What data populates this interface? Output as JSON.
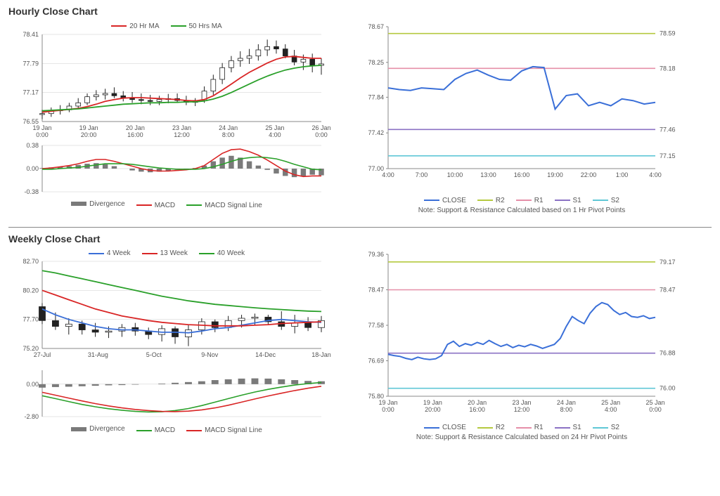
{
  "sections": {
    "hourly": {
      "title": "Hourly Close Chart"
    },
    "weekly": {
      "title": "Weekly Close Chart"
    }
  },
  "colors": {
    "red": "#d92525",
    "green": "#2aa02a",
    "blue": "#3a6fd8",
    "grey": "#7a7a7a",
    "yellowgreen": "#b5c93f",
    "pink": "#e58fa8",
    "purple": "#8b72c4",
    "cyan": "#5fc7d6",
    "black": "#222222",
    "gridline": "#cccccc",
    "background": "#ffffff"
  },
  "hourly_price": {
    "type": "line+candles",
    "legend": [
      {
        "label": "20 Hr MA",
        "color": "#d92525"
      },
      {
        "label": "50 Hrs MA",
        "color": "#2aa02a"
      }
    ],
    "ylim": [
      76.55,
      78.41
    ],
    "yticks": [
      76.55,
      77.17,
      77.79,
      78.41
    ],
    "xticks": [
      "19 Jan\n0:00",
      "19 Jan\n20:00",
      "20 Jan\n16:00",
      "23 Jan\n12:00",
      "24 Jan\n8:00",
      "25 Jan\n4:00",
      "26 Jan\n0:00"
    ],
    "candles": [
      {
        "o": 76.7,
        "h": 76.8,
        "l": 76.6,
        "c": 76.72
      },
      {
        "o": 76.72,
        "h": 76.85,
        "l": 76.65,
        "c": 76.78
      },
      {
        "o": 76.78,
        "h": 76.9,
        "l": 76.7,
        "c": 76.8
      },
      {
        "o": 76.8,
        "h": 76.95,
        "l": 76.75,
        "c": 76.88
      },
      {
        "o": 76.88,
        "h": 77.05,
        "l": 76.82,
        "c": 76.95
      },
      {
        "o": 76.95,
        "h": 77.15,
        "l": 76.9,
        "c": 77.08
      },
      {
        "o": 77.08,
        "h": 77.22,
        "l": 77.0,
        "c": 77.12
      },
      {
        "o": 77.12,
        "h": 77.25,
        "l": 77.02,
        "c": 77.15
      },
      {
        "o": 77.15,
        "h": 77.28,
        "l": 77.05,
        "c": 77.1
      },
      {
        "o": 77.1,
        "h": 77.2,
        "l": 76.98,
        "c": 77.05
      },
      {
        "o": 77.05,
        "h": 77.18,
        "l": 76.95,
        "c": 77.02
      },
      {
        "o": 77.02,
        "h": 77.15,
        "l": 76.92,
        "c": 77.0
      },
      {
        "o": 77.0,
        "h": 77.12,
        "l": 76.9,
        "c": 76.98
      },
      {
        "o": 76.98,
        "h": 77.1,
        "l": 76.9,
        "c": 77.02
      },
      {
        "o": 77.02,
        "h": 77.14,
        "l": 76.94,
        "c": 77.04
      },
      {
        "o": 77.04,
        "h": 77.15,
        "l": 76.95,
        "c": 77.0
      },
      {
        "o": 77.0,
        "h": 77.1,
        "l": 76.9,
        "c": 76.96
      },
      {
        "o": 76.96,
        "h": 77.05,
        "l": 76.88,
        "c": 77.0
      },
      {
        "o": 77.0,
        "h": 77.3,
        "l": 76.95,
        "c": 77.2
      },
      {
        "o": 77.2,
        "h": 77.55,
        "l": 77.12,
        "c": 77.45
      },
      {
        "o": 77.45,
        "h": 77.8,
        "l": 77.35,
        "c": 77.7
      },
      {
        "o": 77.7,
        "h": 77.95,
        "l": 77.6,
        "c": 77.85
      },
      {
        "o": 77.85,
        "h": 78.05,
        "l": 77.72,
        "c": 77.9
      },
      {
        "o": 77.9,
        "h": 78.1,
        "l": 77.78,
        "c": 77.95
      },
      {
        "o": 77.95,
        "h": 78.2,
        "l": 77.85,
        "c": 78.08
      },
      {
        "o": 78.08,
        "h": 78.3,
        "l": 77.95,
        "c": 78.15
      },
      {
        "o": 78.15,
        "h": 78.28,
        "l": 78.0,
        "c": 78.1
      },
      {
        "o": 78.1,
        "h": 78.2,
        "l": 77.9,
        "c": 77.95
      },
      {
        "o": 77.95,
        "h": 78.08,
        "l": 77.75,
        "c": 77.82
      },
      {
        "o": 77.82,
        "h": 77.98,
        "l": 77.65,
        "c": 77.88
      },
      {
        "o": 77.88,
        "h": 78.0,
        "l": 77.6,
        "c": 77.75
      },
      {
        "o": 77.75,
        "h": 77.9,
        "l": 77.55,
        "c": 77.78
      }
    ],
    "ma20": [
      76.75,
      76.77,
      76.79,
      76.81,
      76.83,
      76.87,
      76.92,
      76.98,
      77.02,
      77.05,
      77.06,
      77.06,
      77.05,
      77.04,
      77.03,
      77.02,
      77.0,
      76.99,
      77.02,
      77.1,
      77.22,
      77.35,
      77.48,
      77.6,
      77.7,
      77.8,
      77.88,
      77.93,
      77.94,
      77.92,
      77.9,
      77.9
    ],
    "ma50": [
      76.78,
      76.79,
      76.8,
      76.81,
      76.82,
      76.84,
      76.86,
      76.88,
      76.9,
      76.92,
      76.93,
      76.94,
      76.95,
      76.95,
      76.96,
      76.96,
      76.97,
      76.97,
      76.99,
      77.03,
      77.09,
      77.17,
      77.26,
      77.35,
      77.44,
      77.52,
      77.59,
      77.65,
      77.69,
      77.72,
      77.74,
      77.75
    ]
  },
  "hourly_macd": {
    "type": "macd",
    "legend": [
      {
        "label": "Divergence",
        "color": "#7a7a7a",
        "thick": true
      },
      {
        "label": "MACD",
        "color": "#d92525"
      },
      {
        "label": "MACD Signal Line",
        "color": "#2aa02a"
      }
    ],
    "ylim": [
      -0.38,
      0.38
    ],
    "yticks": [
      -0.38,
      0.0,
      0.38
    ],
    "divergence": [
      0.01,
      0.02,
      0.03,
      0.04,
      0.06,
      0.08,
      0.09,
      0.07,
      0.04,
      0.0,
      -0.03,
      -0.05,
      -0.06,
      -0.05,
      -0.04,
      -0.02,
      -0.01,
      0.01,
      0.05,
      0.12,
      0.18,
      0.21,
      0.18,
      0.12,
      0.05,
      -0.02,
      -0.08,
      -0.12,
      -0.14,
      -0.13,
      -0.1,
      -0.11
    ],
    "macd": [
      0.0,
      0.01,
      0.03,
      0.05,
      0.08,
      0.12,
      0.15,
      0.15,
      0.12,
      0.08,
      0.04,
      0.0,
      -0.03,
      -0.04,
      -0.04,
      -0.03,
      -0.02,
      0.0,
      0.05,
      0.15,
      0.25,
      0.31,
      0.32,
      0.28,
      0.22,
      0.14,
      0.05,
      -0.04,
      -0.1,
      -0.13,
      -0.12,
      -0.12
    ],
    "signal": [
      -0.01,
      -0.01,
      0.0,
      0.01,
      0.02,
      0.04,
      0.06,
      0.08,
      0.08,
      0.08,
      0.07,
      0.05,
      0.03,
      0.01,
      0.0,
      -0.01,
      -0.01,
      -0.01,
      0.0,
      0.03,
      0.07,
      0.12,
      0.16,
      0.18,
      0.19,
      0.18,
      0.16,
      0.12,
      0.07,
      0.03,
      -0.01,
      -0.02
    ]
  },
  "hourly_pivot": {
    "type": "line",
    "legend": [
      {
        "label": "CLOSE",
        "color": "#3a6fd8"
      },
      {
        "label": "R2",
        "color": "#b5c93f"
      },
      {
        "label": "R1",
        "color": "#e58fa8"
      },
      {
        "label": "S1",
        "color": "#8b72c4"
      },
      {
        "label": "S2",
        "color": "#5fc7d6"
      }
    ],
    "note": "Note: Support & Resistance Calculated based on 1 Hr Pivot Points",
    "ylim": [
      77.0,
      78.67
    ],
    "yticks": [
      77.0,
      77.42,
      77.84,
      78.25,
      78.67
    ],
    "xticks": [
      "4:00",
      "7:00",
      "10:00",
      "13:00",
      "16:00",
      "19:00",
      "22:00",
      "1:00",
      "4:00"
    ],
    "levels": {
      "R2": 78.59,
      "R1": 78.18,
      "S1": 77.46,
      "S2": 77.15
    },
    "close": [
      77.95,
      77.93,
      77.92,
      77.95,
      77.94,
      77.93,
      78.05,
      78.12,
      78.16,
      78.1,
      78.05,
      78.04,
      78.15,
      78.2,
      78.19,
      77.7,
      77.86,
      77.88,
      77.74,
      77.78,
      77.74,
      77.82,
      77.8,
      77.76,
      77.78
    ]
  },
  "weekly_price": {
    "type": "candlestick+line",
    "legend": [
      {
        "label": "4 Week",
        "color": "#3a6fd8"
      },
      {
        "label": "13 Week",
        "color": "#d92525"
      },
      {
        "label": "40 Week",
        "color": "#2aa02a"
      }
    ],
    "ylim": [
      75.2,
      82.7
    ],
    "yticks": [
      75.2,
      77.7,
      80.2,
      82.7
    ],
    "xticks": [
      "27-Jul",
      "31-Aug",
      "5-Oct",
      "9-Nov",
      "14-Dec",
      "18-Jan"
    ],
    "candles": [
      {
        "o": 78.8,
        "h": 79.1,
        "l": 77.3,
        "c": 77.6
      },
      {
        "o": 77.6,
        "h": 78.3,
        "l": 76.8,
        "c": 77.1
      },
      {
        "o": 77.1,
        "h": 77.8,
        "l": 76.4,
        "c": 77.3
      },
      {
        "o": 77.3,
        "h": 77.6,
        "l": 76.4,
        "c": 76.8
      },
      {
        "o": 76.8,
        "h": 77.4,
        "l": 76.2,
        "c": 76.6
      },
      {
        "o": 76.6,
        "h": 77.1,
        "l": 76.1,
        "c": 76.7
      },
      {
        "o": 76.7,
        "h": 77.3,
        "l": 76.2,
        "c": 77.0
      },
      {
        "o": 77.0,
        "h": 77.4,
        "l": 76.3,
        "c": 76.7
      },
      {
        "o": 76.7,
        "h": 77.0,
        "l": 76.0,
        "c": 76.4
      },
      {
        "o": 76.4,
        "h": 77.2,
        "l": 75.8,
        "c": 76.9
      },
      {
        "o": 76.9,
        "h": 77.1,
        "l": 75.6,
        "c": 76.2
      },
      {
        "o": 76.2,
        "h": 77.2,
        "l": 75.4,
        "c": 76.8
      },
      {
        "o": 76.8,
        "h": 77.8,
        "l": 76.4,
        "c": 77.5
      },
      {
        "o": 77.5,
        "h": 77.7,
        "l": 76.6,
        "c": 77.0
      },
      {
        "o": 77.0,
        "h": 78.0,
        "l": 76.7,
        "c": 77.6
      },
      {
        "o": 77.6,
        "h": 78.1,
        "l": 77.0,
        "c": 77.8
      },
      {
        "o": 77.8,
        "h": 78.2,
        "l": 77.2,
        "c": 77.9
      },
      {
        "o": 77.9,
        "h": 78.1,
        "l": 77.2,
        "c": 77.5
      },
      {
        "o": 77.5,
        "h": 78.4,
        "l": 76.8,
        "c": 77.1
      },
      {
        "o": 77.1,
        "h": 78.1,
        "l": 76.5,
        "c": 77.4
      },
      {
        "o": 77.4,
        "h": 77.9,
        "l": 76.7,
        "c": 77.0
      },
      {
        "o": 77.0,
        "h": 78.0,
        "l": 76.6,
        "c": 77.6
      }
    ],
    "ma4": [
      78.6,
      78.1,
      77.7,
      77.4,
      77.1,
      76.9,
      76.8,
      76.8,
      76.7,
      76.6,
      76.6,
      76.55,
      76.7,
      76.9,
      77.0,
      77.2,
      77.4,
      77.6,
      77.7,
      77.6,
      77.5,
      77.45
    ],
    "ma13": [
      80.2,
      79.8,
      79.4,
      79.0,
      78.6,
      78.3,
      78.0,
      77.8,
      77.6,
      77.45,
      77.35,
      77.25,
      77.2,
      77.15,
      77.15,
      77.15,
      77.2,
      77.25,
      77.35,
      77.4,
      77.45,
      77.5
    ],
    "ma40": [
      81.9,
      81.7,
      81.45,
      81.2,
      80.95,
      80.7,
      80.45,
      80.2,
      79.95,
      79.7,
      79.5,
      79.3,
      79.15,
      79.0,
      78.9,
      78.8,
      78.7,
      78.62,
      78.55,
      78.48,
      78.42,
      78.38
    ]
  },
  "weekly_macd": {
    "type": "macd",
    "legend": [
      {
        "label": "Divergence",
        "color": "#7a7a7a",
        "thick": true
      },
      {
        "label": "MACD",
        "color": "#2aa02a"
      },
      {
        "label": "MACD Signal Line",
        "color": "#d92525"
      }
    ],
    "ylim": [
      -2.8,
      1.2
    ],
    "yticks": [
      -2.8,
      0.0
    ],
    "divergence": [
      -0.3,
      -0.25,
      -0.22,
      -0.18,
      -0.14,
      -0.1,
      -0.08,
      -0.04,
      0.0,
      0.05,
      0.12,
      0.18,
      0.25,
      0.35,
      0.42,
      0.48,
      0.5,
      0.48,
      0.42,
      0.35,
      0.28,
      0.25
    ],
    "macd": [
      -1.0,
      -1.25,
      -1.5,
      -1.75,
      -1.95,
      -2.12,
      -2.25,
      -2.35,
      -2.4,
      -2.38,
      -2.28,
      -2.1,
      -1.85,
      -1.55,
      -1.25,
      -0.95,
      -0.68,
      -0.45,
      -0.25,
      -0.08,
      0.05,
      0.15
    ],
    "signal": [
      -0.7,
      -0.95,
      -1.2,
      -1.45,
      -1.68,
      -1.88,
      -2.05,
      -2.18,
      -2.28,
      -2.35,
      -2.37,
      -2.33,
      -2.22,
      -2.05,
      -1.82,
      -1.55,
      -1.28,
      -1.02,
      -0.78,
      -0.55,
      -0.35,
      -0.18
    ]
  },
  "weekly_pivot": {
    "type": "line",
    "legend": [
      {
        "label": "CLOSE",
        "color": "#3a6fd8"
      },
      {
        "label": "R2",
        "color": "#b5c93f"
      },
      {
        "label": "R1",
        "color": "#e58fa8"
      },
      {
        "label": "S1",
        "color": "#8b72c4"
      },
      {
        "label": "S2",
        "color": "#5fc7d6"
      }
    ],
    "note": "Note: Support & Resistance Calculated based on 24 Hr Pivot Points",
    "ylim": [
      75.8,
      79.36
    ],
    "yticks": [
      75.8,
      76.69,
      77.58,
      78.47,
      79.36
    ],
    "xticks": [
      "19 Jan\n0:00",
      "19 Jan\n20:00",
      "20 Jan\n16:00",
      "23 Jan\n12:00",
      "24 Jan\n8:00",
      "25 Jan\n4:00",
      "25 Jan\n0:00"
    ],
    "levels": {
      "R2": 79.17,
      "R1": 78.47,
      "S1": 76.88,
      "S2": 76.0
    },
    "close": [
      76.85,
      76.82,
      76.8,
      76.75,
      76.72,
      76.78,
      76.74,
      76.72,
      76.74,
      76.82,
      77.1,
      77.18,
      77.05,
      77.12,
      77.08,
      77.15,
      77.1,
      77.2,
      77.12,
      77.05,
      77.1,
      77.02,
      77.08,
      77.04,
      77.1,
      77.06,
      77.0,
      77.05,
      77.1,
      77.25,
      77.55,
      77.8,
      77.7,
      77.62,
      77.88,
      78.05,
      78.15,
      78.1,
      77.95,
      77.85,
      77.9,
      77.8,
      77.78,
      77.82,
      77.75,
      77.78
    ]
  }
}
